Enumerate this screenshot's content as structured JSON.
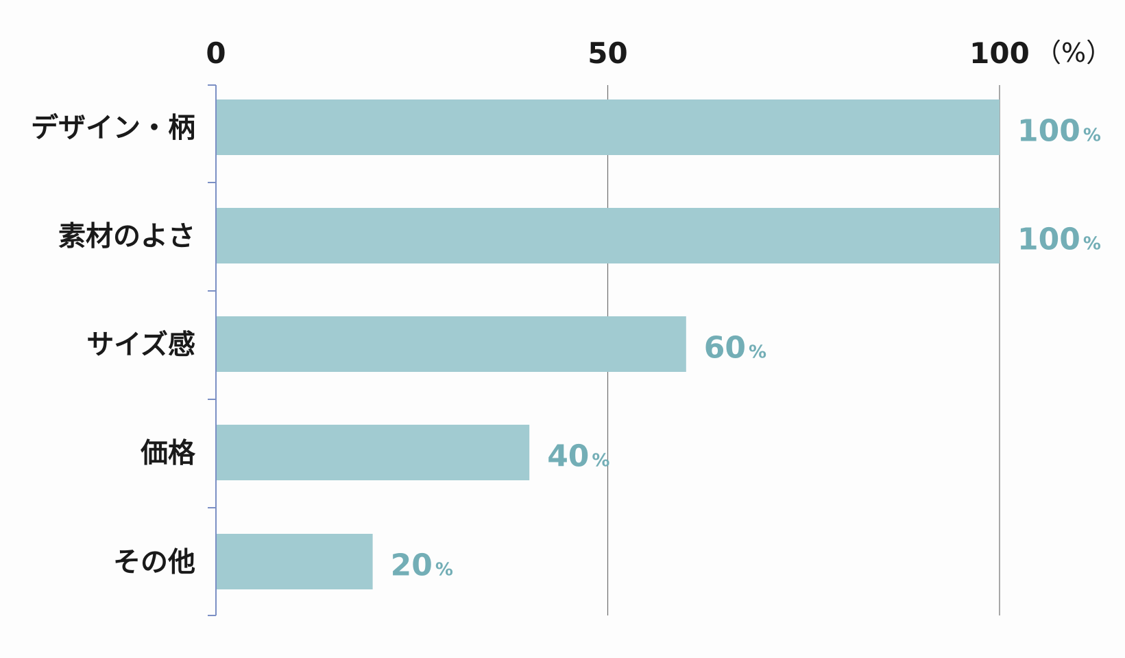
{
  "chart_data": {
    "type": "bar",
    "orientation": "horizontal",
    "categories": [
      "デザイン・柄",
      "素材のよさ",
      "サイズ感",
      "価格",
      "その他"
    ],
    "values": [
      100,
      100,
      60,
      40,
      20
    ],
    "value_suffix": "%",
    "xlim": [
      0,
      100
    ],
    "x_ticks": [
      0,
      50,
      100
    ],
    "x_tick_labels": [
      "0",
      "50",
      "100"
    ],
    "x_unit_label": "（%）",
    "axis_position": "top",
    "grid": true,
    "legend": "none",
    "bar_color": "#a1cbd1",
    "value_label_color": "#73aeb6",
    "text_color": "#1a1a1a",
    "axis_color": "#7b8fc4",
    "grid_color": "#6f6f6f"
  }
}
